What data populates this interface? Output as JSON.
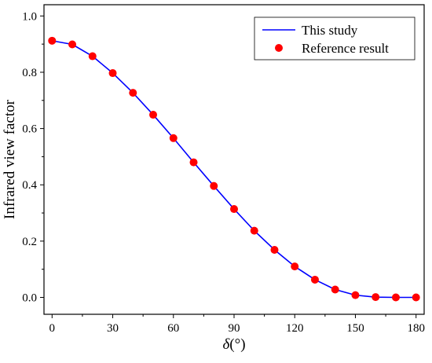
{
  "chart_data": {
    "type": "line",
    "xlabel": "δ(°)",
    "xlabel_symbol": "δ",
    "xlabel_unit": "(°)",
    "ylabel": "Infrared view factor",
    "xlim": [
      -4,
      184
    ],
    "ylim": [
      -0.06,
      1.04
    ],
    "xticks": [
      0,
      30,
      60,
      90,
      120,
      150,
      180
    ],
    "xtick_labels": [
      "0",
      "30",
      "60",
      "90",
      "120",
      "150",
      "180"
    ],
    "yticks": [
      0.0,
      0.2,
      0.4,
      0.6,
      0.8,
      1.0
    ],
    "ytick_labels": [
      "0.0",
      "0.2",
      "0.4",
      "0.6",
      "0.8",
      "1.0"
    ],
    "grid": false,
    "legend_position": "top-right",
    "series": [
      {
        "name": "This study",
        "style": "line",
        "color": "#0000ff",
        "x": [
          0,
          10,
          20,
          30,
          40,
          50,
          60,
          70,
          80,
          90,
          100,
          110,
          120,
          130,
          140,
          150,
          160,
          170,
          180
        ],
        "y": [
          0.912,
          0.899,
          0.857,
          0.797,
          0.727,
          0.649,
          0.566,
          0.48,
          0.396,
          0.314,
          0.237,
          0.169,
          0.11,
          0.063,
          0.028,
          0.008,
          0.001,
          0.0,
          0.0
        ]
      },
      {
        "name": "Reference result",
        "style": "scatter",
        "color": "#ff0000",
        "x": [
          0,
          10,
          20,
          30,
          40,
          50,
          60,
          70,
          80,
          90,
          100,
          110,
          120,
          130,
          140,
          150,
          160,
          170,
          180
        ],
        "y": [
          0.912,
          0.899,
          0.857,
          0.797,
          0.727,
          0.649,
          0.566,
          0.48,
          0.396,
          0.314,
          0.237,
          0.169,
          0.11,
          0.063,
          0.028,
          0.008,
          0.001,
          0.0,
          0.0
        ]
      }
    ]
  }
}
